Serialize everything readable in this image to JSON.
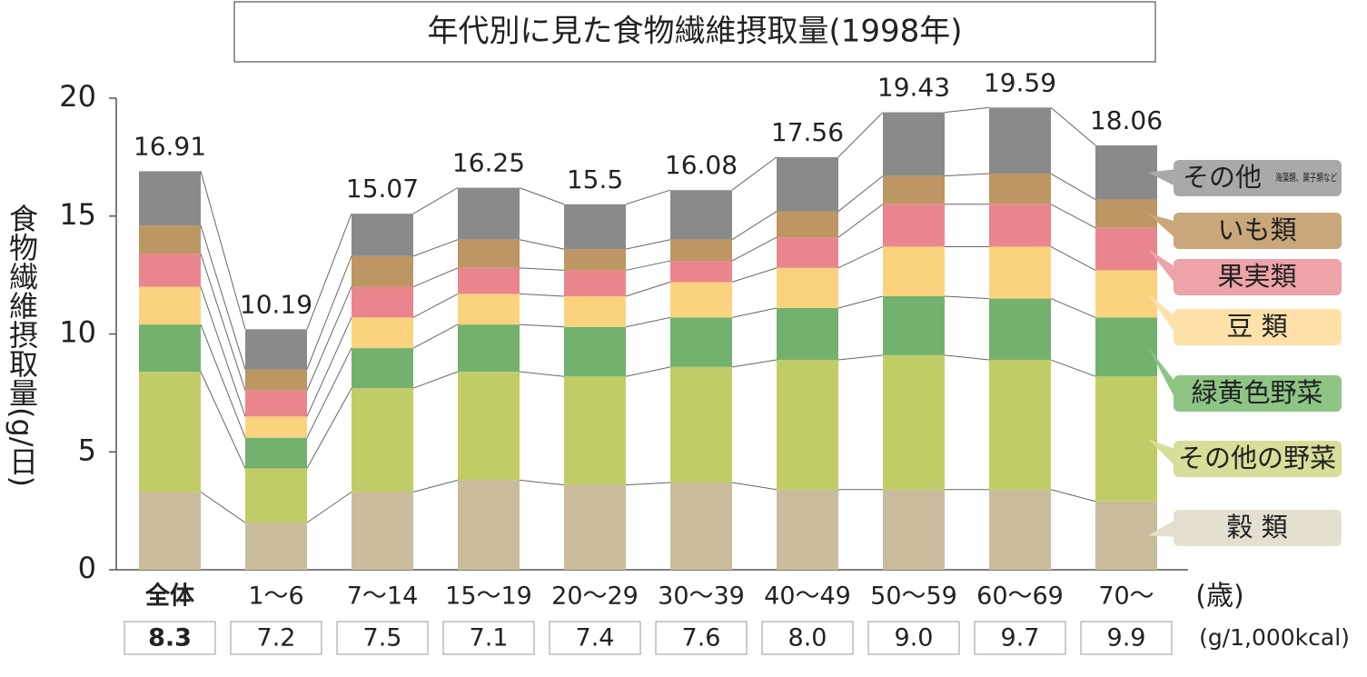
{
  "chart_data": {
    "type": "stacked_bar",
    "title": "年代別に見た食物繊維摂取量(1998年)",
    "y_label": "食物繊維摂取量(g/日)",
    "x_unit": "(歳)",
    "categories": [
      "全体",
      "1〜6",
      "7〜14",
      "15〜19",
      "20〜29",
      "30〜39",
      "40〜49",
      "50〜59",
      "60〜69",
      "70〜"
    ],
    "totals": [
      16.91,
      10.19,
      15.07,
      16.25,
      15.5,
      16.08,
      17.56,
      19.43,
      19.59,
      18.06
    ],
    "density_unit": "(g/1,000kcal)",
    "density": [
      {
        "value": 8.3,
        "label": "8.3"
      },
      7.2,
      7.5,
      7.1,
      7.4,
      7.6,
      {
        "value": 8,
        "label": "8.0"
      },
      {
        "value": 9,
        "label": "9.0"
      },
      9.7,
      9.9
    ],
    "series": [
      {
        "name": "穀 類",
        "color": "#c8bc9c",
        "legend_color": "#e4dfcf",
        "values": [
          3.3,
          2.0,
          3.3,
          3.8,
          3.6,
          3.7,
          3.4,
          3.4,
          3.4,
          2.9
        ]
      },
      {
        "name": "その他の野菜",
        "color": "#c2cc66",
        "legend_color": "#d7de98",
        "values": [
          5.1,
          2.3,
          4.4,
          4.6,
          4.6,
          4.9,
          5.5,
          5.7,
          5.5,
          5.3
        ]
      },
      {
        "name": "緑黄色野菜",
        "color": "#72b26e",
        "legend_color": "#8ec585",
        "values": [
          2.0,
          1.3,
          1.7,
          2.0,
          2.1,
          2.1,
          2.2,
          2.5,
          2.6,
          2.5
        ]
      },
      {
        "name": "豆 類",
        "color": "#fbd37e",
        "legend_color": "#fde1a8",
        "values": [
          1.6,
          0.9,
          1.3,
          1.3,
          1.3,
          1.5,
          1.7,
          2.1,
          2.2,
          2.0
        ]
      },
      {
        "name": "果実類",
        "color": "#e9868d",
        "legend_color": "#eea3a8",
        "values": [
          1.4,
          1.1,
          1.3,
          1.1,
          1.1,
          0.9,
          1.3,
          1.8,
          1.8,
          1.8
        ]
      },
      {
        "name": "いも類",
        "color": "#bd9664",
        "legend_color": "#c9a77a",
        "values": [
          1.2,
          0.9,
          1.3,
          1.2,
          0.9,
          0.9,
          1.1,
          1.2,
          1.3,
          1.2
        ]
      },
      {
        "name": "その他",
        "note": "海藻類、菓子類など",
        "color": "#8a8a8a",
        "legend_color": "#a9a9a9",
        "values": [
          2.3,
          1.7,
          1.8,
          2.2,
          1.9,
          2.1,
          2.3,
          2.7,
          2.8,
          2.3
        ]
      }
    ],
    "ylim": [
      0,
      20
    ],
    "yticks": [
      0,
      5,
      10,
      15,
      20
    ]
  }
}
